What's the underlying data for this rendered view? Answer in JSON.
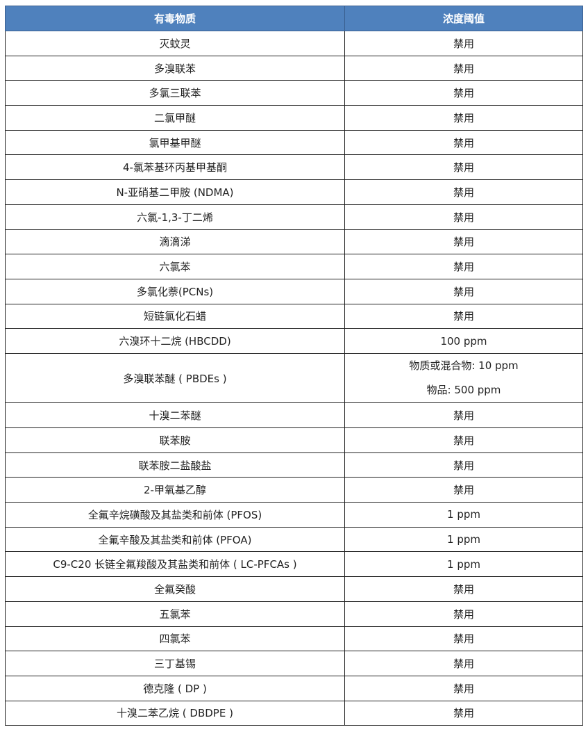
{
  "header": {
    "substance": "有毒物质",
    "threshold": "浓度阈值"
  },
  "header_color": "#4f81bd",
  "rows": [
    {
      "substance": "灭蚊灵",
      "threshold": [
        "禁用"
      ]
    },
    {
      "substance": "多溴联苯",
      "threshold": [
        "禁用"
      ]
    },
    {
      "substance": "多氯三联苯",
      "threshold": [
        "禁用"
      ]
    },
    {
      "substance": "二氯甲醚",
      "threshold": [
        "禁用"
      ]
    },
    {
      "substance": "氯甲基甲醚",
      "threshold": [
        "禁用"
      ]
    },
    {
      "substance": "4-氯苯基环丙基甲基酮",
      "threshold": [
        "禁用"
      ]
    },
    {
      "substance": "N-亚硝基二甲胺 (NDMA)",
      "threshold": [
        "禁用"
      ]
    },
    {
      "substance": "六氯-1,3-丁二烯",
      "threshold": [
        "禁用"
      ]
    },
    {
      "substance": "滴滴涕",
      "threshold": [
        "禁用"
      ]
    },
    {
      "substance": "六氯苯",
      "threshold": [
        "禁用"
      ]
    },
    {
      "substance": "多氯化萘(PCNs)",
      "threshold": [
        "禁用"
      ]
    },
    {
      "substance": "短链氯化石蜡",
      "threshold": [
        "禁用"
      ]
    },
    {
      "substance": "六溴环十二烷 (HBCDD)",
      "threshold": [
        "100 ppm"
      ]
    },
    {
      "substance": "多溴联苯醚 ( PBDEs )",
      "threshold": [
        "物质或混合物: 10 ppm",
        "物品: 500 ppm"
      ]
    },
    {
      "substance": "十溴二苯醚",
      "threshold": [
        "禁用"
      ]
    },
    {
      "substance": "联苯胺",
      "threshold": [
        "禁用"
      ]
    },
    {
      "substance": "联苯胺二盐酸盐",
      "threshold": [
        "禁用"
      ]
    },
    {
      "substance": "2-甲氧基乙醇",
      "threshold": [
        "禁用"
      ]
    },
    {
      "substance": "全氟辛烷磺酸及其盐类和前体 (PFOS)",
      "threshold": [
        "1 ppm"
      ]
    },
    {
      "substance": "全氟辛酸及其盐类和前体 (PFOA)",
      "threshold": [
        "1 ppm"
      ]
    },
    {
      "substance": "C9-C20 长链全氟羧酸及其盐类和前体 ( LC-PFCAs )",
      "threshold": [
        "1 ppm"
      ]
    },
    {
      "substance": "全氟癸酸",
      "threshold": [
        "禁用"
      ]
    },
    {
      "substance": "五氯苯",
      "threshold": [
        "禁用"
      ]
    },
    {
      "substance": "四氯苯",
      "threshold": [
        "禁用"
      ]
    },
    {
      "substance": "三丁基锡",
      "threshold": [
        "禁用"
      ]
    },
    {
      "substance": "德克隆 ( DP )",
      "threshold": [
        "禁用"
      ]
    },
    {
      "substance": "十溴二苯乙烷 ( DBDPE )",
      "threshold": [
        "禁用"
      ]
    }
  ]
}
